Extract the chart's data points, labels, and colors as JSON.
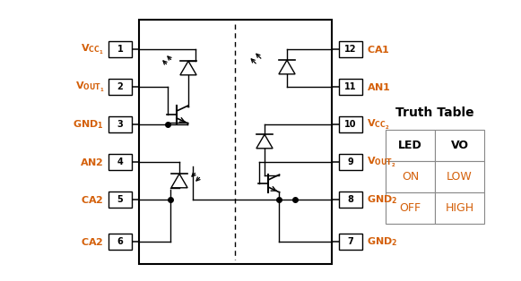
{
  "bg_color": "#ffffff",
  "orange_color": "#D4600A",
  "left_pins": [
    "1",
    "2",
    "3",
    "4",
    "5",
    "6"
  ],
  "right_pins": [
    "12",
    "11",
    "10",
    "9",
    "8",
    "7"
  ],
  "left_labels": [
    "V_{CC_1}",
    "V_{OUT_1}",
    "GND_1",
    "AN2",
    "CA2",
    "CA2"
  ],
  "right_labels": [
    "CA1",
    "AN1",
    "V_{CC_2}",
    "V_{OUT_2}",
    "GND_2",
    "GND_2"
  ],
  "truth_table_title": "Truth Table",
  "truth_headers": [
    "LED",
    "VO"
  ],
  "truth_rows": [
    [
      "ON",
      "LOW"
    ],
    [
      "OFF",
      "HIGH"
    ]
  ]
}
